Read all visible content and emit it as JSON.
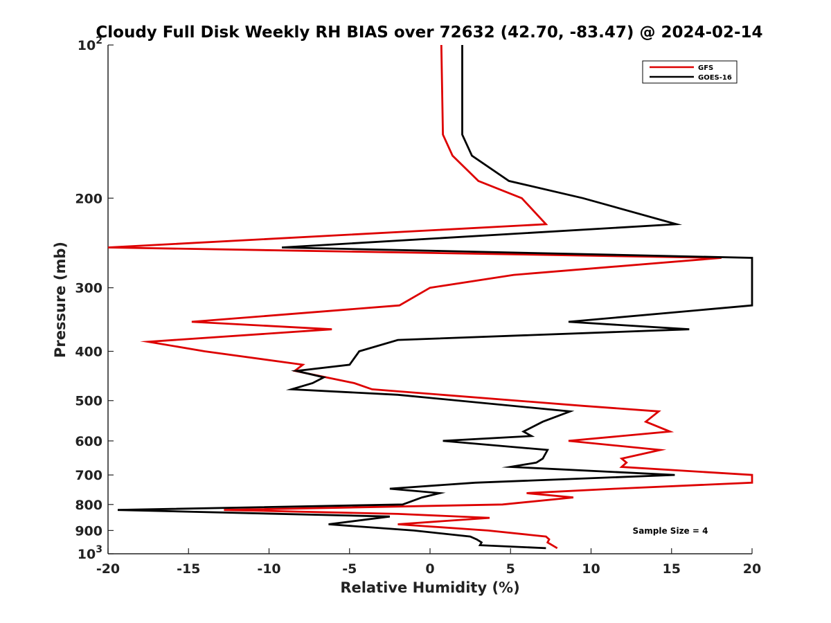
{
  "chart_data": {
    "type": "line",
    "title": "Cloudy Full Disk Weekly RH BIAS over 72632 (42.70, -83.47) @ 2024-02-14",
    "xlabel": "Relative Humidity (%)",
    "ylabel": "Pressure (mb)",
    "xlim": [
      -20,
      20
    ],
    "ylim": [
      100,
      1000
    ],
    "y_scale": "log",
    "y_reversed": true,
    "grid": false,
    "legend_position": "top-right",
    "x_ticks": [
      -20,
      -15,
      -10,
      -5,
      0,
      5,
      10,
      15,
      20
    ],
    "x_tick_labels": [
      "-20",
      "-15",
      "-10",
      "-5",
      "0",
      "5",
      "10",
      "15",
      "20"
    ],
    "y_ticks": [
      100,
      200,
      300,
      400,
      500,
      600,
      700,
      800,
      900,
      1000
    ],
    "y_tick_labels": [
      {
        "base": "10",
        "exp": "2"
      },
      {
        "base": "200",
        "exp": ""
      },
      {
        "base": "300",
        "exp": ""
      },
      {
        "base": "400",
        "exp": ""
      },
      {
        "base": "500",
        "exp": ""
      },
      {
        "base": "600",
        "exp": ""
      },
      {
        "base": "700",
        "exp": ""
      },
      {
        "base": "800",
        "exp": ""
      },
      {
        "base": "900",
        "exp": ""
      },
      {
        "base": "10",
        "exp": "3"
      }
    ],
    "series": [
      {
        "name": "GFS",
        "color": "#dd0000",
        "points": [
          [
            0.7,
            100
          ],
          [
            0.8,
            150
          ],
          [
            1.4,
            165
          ],
          [
            3.0,
            185
          ],
          [
            5.7,
            200
          ],
          [
            7.2,
            225
          ],
          [
            -20.0,
            250
          ],
          [
            18.1,
            262
          ],
          [
            5.2,
            283
          ],
          [
            0.0,
            300
          ],
          [
            -1.9,
            325
          ],
          [
            -14.8,
            350
          ],
          [
            -6.1,
            362
          ],
          [
            -17.5,
            383
          ],
          [
            -14.0,
            400
          ],
          [
            -7.9,
            425
          ],
          [
            -8.4,
            437
          ],
          [
            -4.7,
            462
          ],
          [
            -3.6,
            475
          ],
          [
            9.5,
            512
          ],
          [
            14.2,
            525
          ],
          [
            13.4,
            550
          ],
          [
            14.9,
            575
          ],
          [
            8.6,
            600
          ],
          [
            14.3,
            625
          ],
          [
            11.9,
            650
          ],
          [
            12.2,
            662
          ],
          [
            11.9,
            675
          ],
          [
            20.0,
            700
          ],
          [
            20.0,
            725
          ],
          [
            11.5,
            745
          ],
          [
            6.0,
            760
          ],
          [
            8.9,
            775
          ],
          [
            4.5,
            800
          ],
          [
            -12.8,
            820
          ],
          [
            -2.0,
            835
          ],
          [
            3.7,
            850
          ],
          [
            -2.0,
            875
          ],
          [
            3.6,
            900
          ],
          [
            7.2,
            925
          ],
          [
            7.4,
            937
          ],
          [
            7.3,
            950
          ],
          [
            7.9,
            975
          ]
        ]
      },
      {
        "name": "GOES-16",
        "color": "#000000",
        "points": [
          [
            2.0,
            100
          ],
          [
            2.0,
            150
          ],
          [
            2.6,
            165
          ],
          [
            4.9,
            185
          ],
          [
            9.5,
            200
          ],
          [
            15.3,
            225
          ],
          [
            -9.2,
            250
          ],
          [
            20.0,
            262
          ],
          [
            20.0,
            325
          ],
          [
            8.6,
            350
          ],
          [
            16.1,
            362
          ],
          [
            -2.0,
            380
          ],
          [
            -4.4,
            400
          ],
          [
            -5.0,
            425
          ],
          [
            -8.3,
            437
          ],
          [
            -6.6,
            450
          ],
          [
            -7.3,
            462
          ],
          [
            -8.6,
            475
          ],
          [
            -2.0,
            487
          ],
          [
            8.7,
            525
          ],
          [
            7.0,
            550
          ],
          [
            5.8,
            575
          ],
          [
            6.3,
            587
          ],
          [
            0.8,
            600
          ],
          [
            7.3,
            625
          ],
          [
            7.0,
            650
          ],
          [
            6.6,
            662
          ],
          [
            5.0,
            675
          ],
          [
            15.2,
            700
          ],
          [
            2.8,
            725
          ],
          [
            -2.5,
            745
          ],
          [
            0.6,
            760
          ],
          [
            -0.5,
            775
          ],
          [
            -1.7,
            800
          ],
          [
            -19.4,
            820
          ],
          [
            -2.5,
            845
          ],
          [
            -6.3,
            875
          ],
          [
            -1.0,
            900
          ],
          [
            2.5,
            925
          ],
          [
            2.9,
            937
          ],
          [
            3.2,
            950
          ],
          [
            3.1,
            962
          ],
          [
            7.2,
            975
          ]
        ]
      }
    ],
    "annotations": [
      {
        "text": "Sample Size = 4"
      }
    ]
  }
}
